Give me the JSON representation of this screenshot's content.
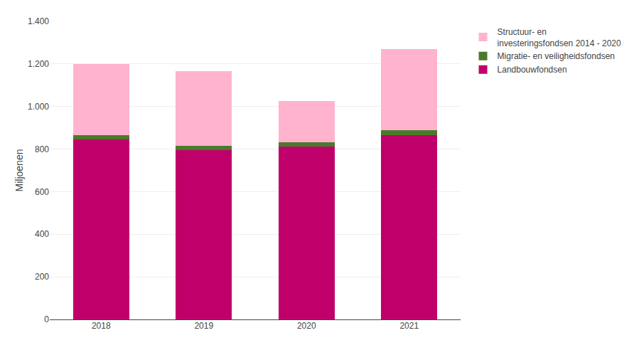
{
  "chart_data": {
    "type": "bar",
    "stacked": true,
    "categories": [
      "2018",
      "2019",
      "2020",
      "2021"
    ],
    "series": [
      {
        "name": "Landbouwfondsen",
        "color": "#C0006A",
        "values": [
          847.0,
          794.0,
          812.0,
          864.7
        ]
      },
      {
        "name": "Migratie- en veiligheidsfondsen",
        "color": "#4B7A2A",
        "values": [
          17.0,
          21.0,
          21.0,
          23.1
        ]
      },
      {
        "name": "Structuur- en\ninvesteringsfondsen 2014 - 2020",
        "color": "#FFB3CF",
        "values": [
          337.0,
          350.0,
          192.0,
          381.4
        ]
      }
    ],
    "ylabel": "Miljoenen",
    "ylim": [
      0,
      1400
    ],
    "yticks": [
      0,
      200,
      400,
      600,
      800,
      {
        "value": 1000,
        "label": "1.000"
      },
      {
        "value": 1200,
        "label": "1.200"
      },
      {
        "value": 1400,
        "label": "1.400"
      }
    ],
    "grid": true,
    "legend": "upper right"
  }
}
